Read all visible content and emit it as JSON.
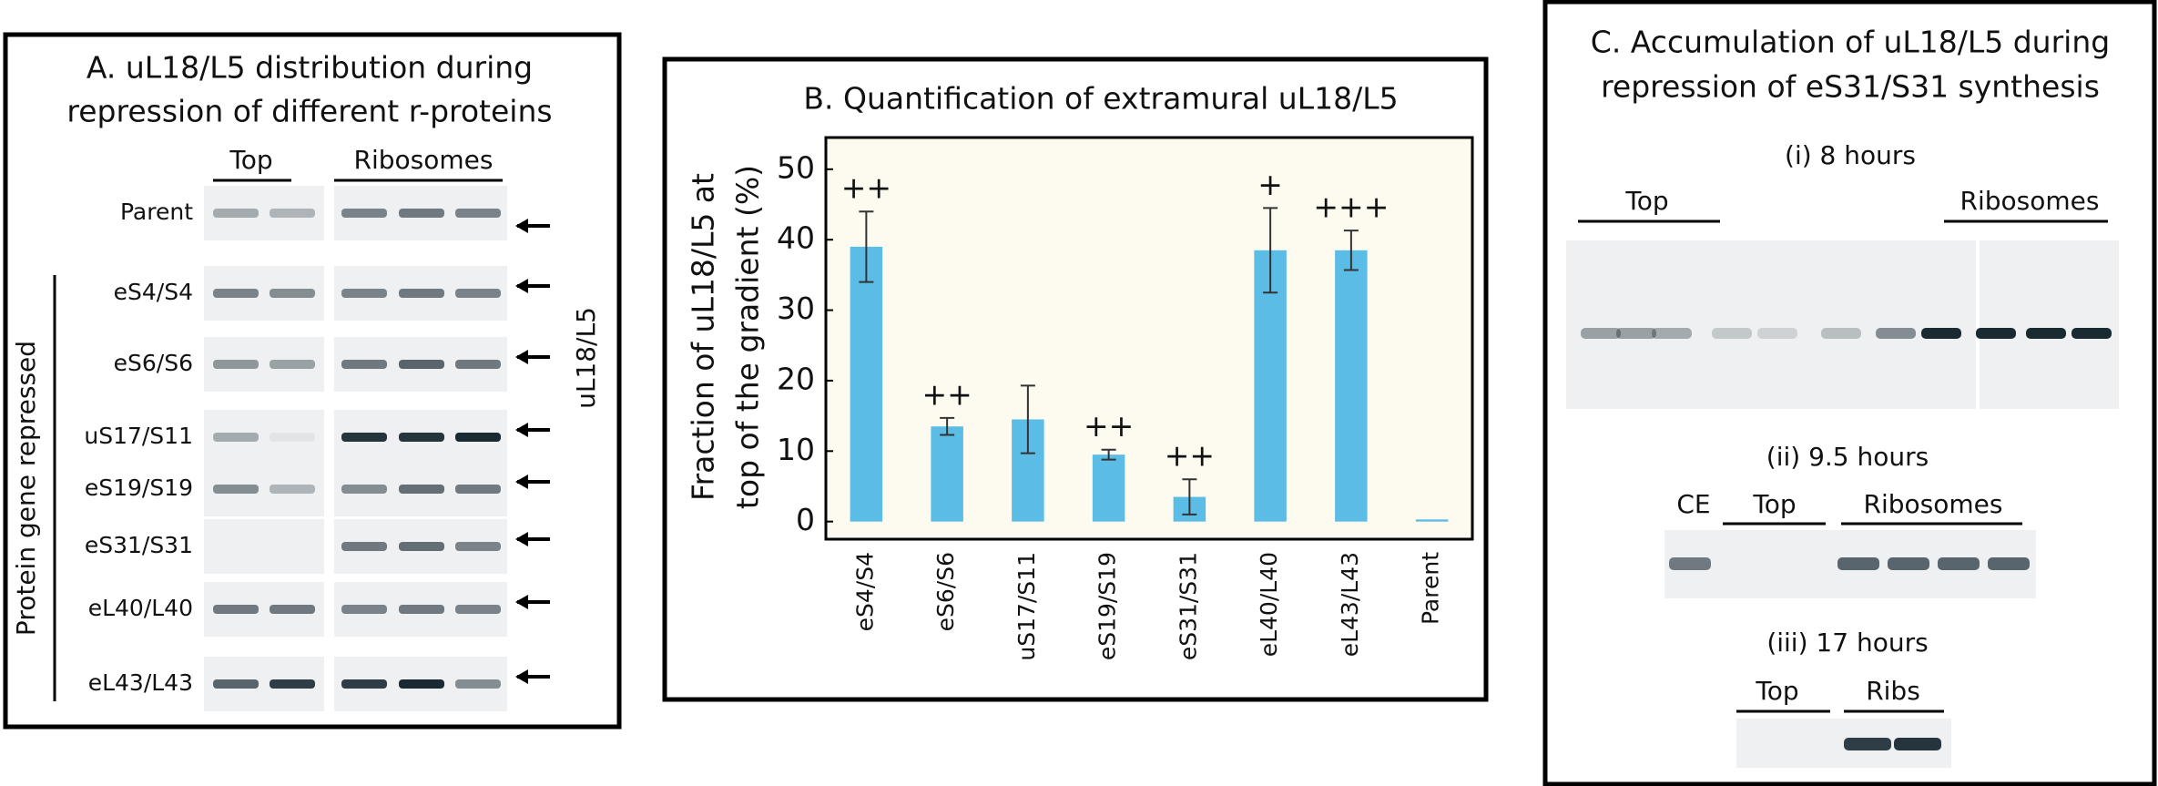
{
  "panel_a": {
    "title": [
      "A. uL18/L5 distribution during",
      "repression of different r-proteins"
    ],
    "headers": [
      "Top",
      "Ribosomes"
    ],
    "rows": [
      "Parent",
      "eS4/S4",
      "eS6/S6",
      "uS17/S11",
      "eS19/S19",
      "eS31/S31",
      "eL40/L40",
      "eL43/L43"
    ],
    "side_label": "Protein gene repressed",
    "target_label": "uL18/L5"
  },
  "chart_data": {
    "type": "bar",
    "title": "B. Quantification of extramural uL18/L5",
    "ylabel": [
      "Fraction of uL18/L5 at",
      "top of the gradient (%)"
    ],
    "categories": [
      "eS4/S4",
      "eS6/S6",
      "uS17/S11",
      "eS19/S19",
      "eS31/S31",
      "eL40/L40",
      "eL43/L43",
      "Parent"
    ],
    "values": [
      39,
      13.5,
      14.5,
      9.5,
      3.5,
      38.5,
      38.5,
      0.3
    ],
    "errors": [
      5,
      1.2,
      4.8,
      0.7,
      2.5,
      6,
      2.8,
      0
    ],
    "annotations": [
      "++",
      "++",
      null,
      "++",
      "++",
      "+",
      "+++",
      null
    ],
    "color": "#5bbde6",
    "background": "#fdfbef",
    "ylim": [
      -2.5,
      54.5
    ],
    "yticks": [
      0,
      10,
      20,
      30,
      40,
      50
    ],
    "grid": false
  },
  "panel_c": {
    "title": [
      "C. Accumulation of uL18/L5 during",
      "repression of eS31/S31 synthesis"
    ],
    "sections": [
      {
        "label": "(i) 8 hours",
        "headers": [
          "Top",
          "Ribosomes"
        ]
      },
      {
        "label": "(ii) 9.5 hours",
        "headers": [
          "CE",
          "Top",
          "Ribosomes"
        ]
      },
      {
        "label": "(iii) 17 hours",
        "headers": [
          "Top",
          "Ribs"
        ]
      }
    ]
  }
}
